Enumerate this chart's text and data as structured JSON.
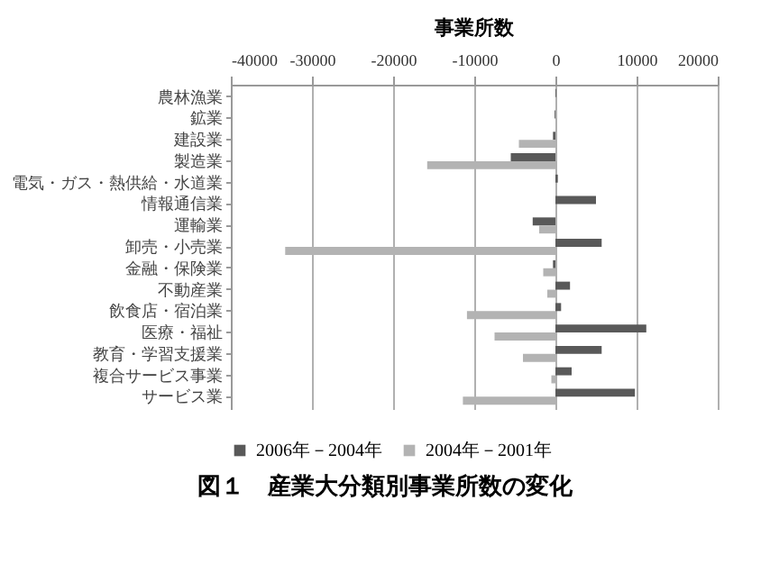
{
  "chart_data": {
    "type": "bar",
    "orientation": "horizontal",
    "title": "事業所数",
    "categories": [
      "農林漁業",
      "鉱業",
      "建設業",
      "製造業",
      "電気・ガス・熱供給・水道業",
      "情報通信業",
      "運輸業",
      "卸売・小売業",
      "金融・保険業",
      "不動産業",
      "飲食店・宿泊業",
      "医療・福祉",
      "教育・学習支援業",
      "複合サービス事業",
      "サービス業"
    ],
    "series": [
      {
        "name": "2006年－2004年",
        "color": "#595959",
        "values": [
          100,
          -100,
          -300,
          -5500,
          300,
          5000,
          -2800,
          5700,
          -300,
          1800,
          700,
          11200,
          5700,
          2000,
          9800
        ]
      },
      {
        "name": "2004年－2001年",
        "color": "#b3b3b3",
        "values": [
          null,
          null,
          -4500,
          -15800,
          null,
          null,
          -2000,
          -33300,
          -1500,
          -1000,
          -10900,
          -7500,
          -4000,
          -500,
          -11400
        ]
      }
    ],
    "xlim": [
      -40000,
      20000
    ],
    "xticks": [
      -40000,
      -30000,
      -20000,
      -10000,
      0,
      10000,
      20000
    ],
    "grid": "x",
    "legend": "bottom",
    "annotations": [
      "図１　産業大分類別事業所数の変化"
    ]
  }
}
